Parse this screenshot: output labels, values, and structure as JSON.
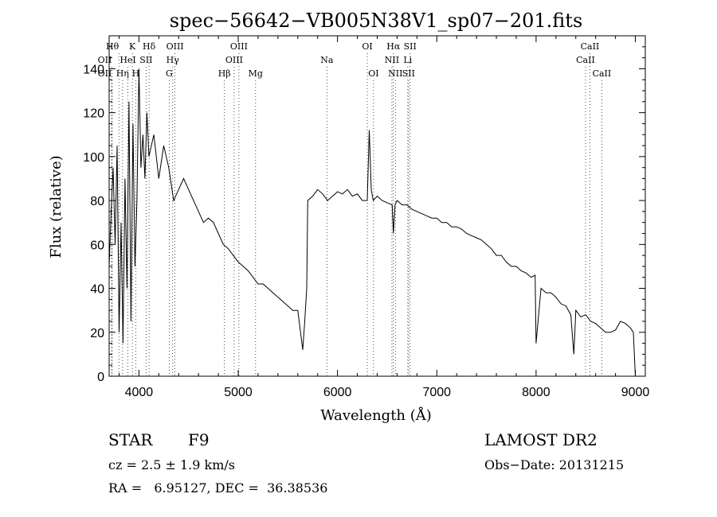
{
  "chart_data": {
    "type": "line",
    "title": "spec−56642−VB005N38V1_sp07−201.fits",
    "xlabel": "Wavelength (Å)",
    "ylabel": "Flux (relative)",
    "xlim": [
      3700,
      9100
    ],
    "ylim": [
      0,
      155
    ],
    "xticks": [
      4000,
      5000,
      6000,
      7000,
      8000,
      9000
    ],
    "yticks": [
      0,
      20,
      40,
      60,
      80,
      100,
      120,
      140
    ],
    "grid": false,
    "series": [
      {
        "x": [
          3700,
          3720,
          3740,
          3760,
          3780,
          3800,
          3820,
          3840,
          3860,
          3880,
          3900,
          3920,
          3940,
          3960,
          3980,
          4000,
          4020,
          4040,
          4060,
          4080,
          4100,
          4150,
          4200,
          4250,
          4300,
          4350,
          4400,
          4450,
          4500,
          4550,
          4600,
          4650,
          4700,
          4750,
          4800,
          4850,
          4900,
          4950,
          5000,
          5050,
          5100,
          5150,
          5200,
          5250,
          5300,
          5350,
          5400,
          5450,
          5500,
          5550,
          5600,
          5650,
          5670,
          5690,
          5700,
          5750,
          5800,
          5850,
          5900,
          5950,
          6000,
          6050,
          6100,
          6150,
          6200,
          6250,
          6300,
          6320,
          6340,
          6360,
          6400,
          6450,
          6500,
          6550,
          6563,
          6580,
          6600,
          6650,
          6700,
          6750,
          6800,
          6850,
          6900,
          6950,
          7000,
          7050,
          7100,
          7150,
          7200,
          7250,
          7300,
          7350,
          7400,
          7450,
          7500,
          7550,
          7600,
          7650,
          7700,
          7750,
          7800,
          7850,
          7900,
          7950,
          7990,
          8000,
          8050,
          8100,
          8150,
          8200,
          8250,
          8300,
          8350,
          8380,
          8400,
          8450,
          8500,
          8550,
          8600,
          8650,
          8700,
          8750,
          8800,
          8850,
          8900,
          8950,
          8980,
          9000
        ],
        "y": [
          50,
          75,
          95,
          60,
          105,
          20,
          70,
          15,
          90,
          40,
          125,
          25,
          115,
          50,
          80,
          140,
          95,
          110,
          90,
          120,
          100,
          110,
          90,
          105,
          95,
          80,
          85,
          90,
          85,
          80,
          75,
          70,
          72,
          70,
          65,
          60,
          58,
          55,
          52,
          50,
          48,
          45,
          42,
          42,
          40,
          38,
          36,
          34,
          32,
          30,
          30,
          12,
          25,
          40,
          80,
          82,
          85,
          83,
          80,
          82,
          84,
          83,
          85,
          82,
          83,
          80,
          80,
          112,
          85,
          80,
          82,
          80,
          79,
          78,
          65,
          78,
          80,
          78,
          78,
          76,
          75,
          74,
          73,
          72,
          72,
          70,
          70,
          68,
          68,
          67,
          65,
          64,
          63,
          62,
          60,
          58,
          55,
          55,
          52,
          50,
          50,
          48,
          47,
          45,
          46,
          15,
          40,
          38,
          38,
          36,
          33,
          32,
          28,
          10,
          30,
          27,
          28,
          25,
          24,
          22,
          20,
          20,
          21,
          25,
          24,
          22,
          20,
          0
        ]
      }
    ],
    "line_ids": [
      {
        "label": "Hθ",
        "x": 3798,
        "row": 0,
        "anchor": "end"
      },
      {
        "label": "K",
        "x": 3934,
        "row": 0,
        "anchor": "middle"
      },
      {
        "label": "Hδ",
        "x": 4102,
        "row": 0,
        "anchor": "middle"
      },
      {
        "label": "OIII",
        "x": 4363,
        "row": 0,
        "anchor": "middle"
      },
      {
        "label": "OIII",
        "x": 5007,
        "row": 0,
        "anchor": "middle"
      },
      {
        "label": "OI",
        "x": 6300,
        "row": 0,
        "anchor": "middle"
      },
      {
        "label": "Hα",
        "x": 6563,
        "row": 0,
        "anchor": "middle"
      },
      {
        "label": "SII",
        "x": 6731,
        "row": 0,
        "anchor": "middle"
      },
      {
        "label": "CaII",
        "x": 8542,
        "row": 0,
        "anchor": "middle"
      },
      {
        "label": "OII",
        "x": 3727,
        "row": 1,
        "anchor": "end"
      },
      {
        "label": "HeI",
        "x": 3889,
        "row": 1,
        "anchor": "middle"
      },
      {
        "label": "SII",
        "x": 4072,
        "row": 1,
        "anchor": "middle"
      },
      {
        "label": "Hγ",
        "x": 4340,
        "row": 1,
        "anchor": "middle"
      },
      {
        "label": "OIII",
        "x": 4959,
        "row": 1,
        "anchor": "middle"
      },
      {
        "label": "Na",
        "x": 5893,
        "row": 1,
        "anchor": "middle"
      },
      {
        "label": "NII",
        "x": 6548,
        "row": 1,
        "anchor": "middle"
      },
      {
        "label": "Li",
        "x": 6708,
        "row": 1,
        "anchor": "middle"
      },
      {
        "label": "CaII",
        "x": 8498,
        "row": 1,
        "anchor": "middle"
      },
      {
        "label": "OII",
        "x": 3727,
        "row": 2,
        "anchor": "end"
      },
      {
        "label": "Hη",
        "x": 3835,
        "row": 2,
        "anchor": "middle"
      },
      {
        "label": "H",
        "x": 3968,
        "row": 2,
        "anchor": "middle"
      },
      {
        "label": "G",
        "x": 4305,
        "row": 2,
        "anchor": "middle"
      },
      {
        "label": "Hβ",
        "x": 4861,
        "row": 2,
        "anchor": "middle"
      },
      {
        "label": "Mg",
        "x": 5175,
        "row": 2,
        "anchor": "middle"
      },
      {
        "label": "OI",
        "x": 6363,
        "row": 2,
        "anchor": "middle"
      },
      {
        "label": "NII",
        "x": 6583,
        "row": 2,
        "anchor": "middle"
      },
      {
        "label": "SII",
        "x": 6716,
        "row": 2,
        "anchor": "middle"
      },
      {
        "label": "CaII",
        "x": 8662,
        "row": 2,
        "anchor": "middle"
      }
    ]
  },
  "info": {
    "object_type": "STAR",
    "subclass": "F9",
    "survey": "LAMOST DR2",
    "redshift_text": "cz = 2.5 ± 1.9 km/s",
    "obs_date": "Obs−Date: 20131215",
    "coords": "RA =   6.95127, DEC =  36.38536"
  }
}
